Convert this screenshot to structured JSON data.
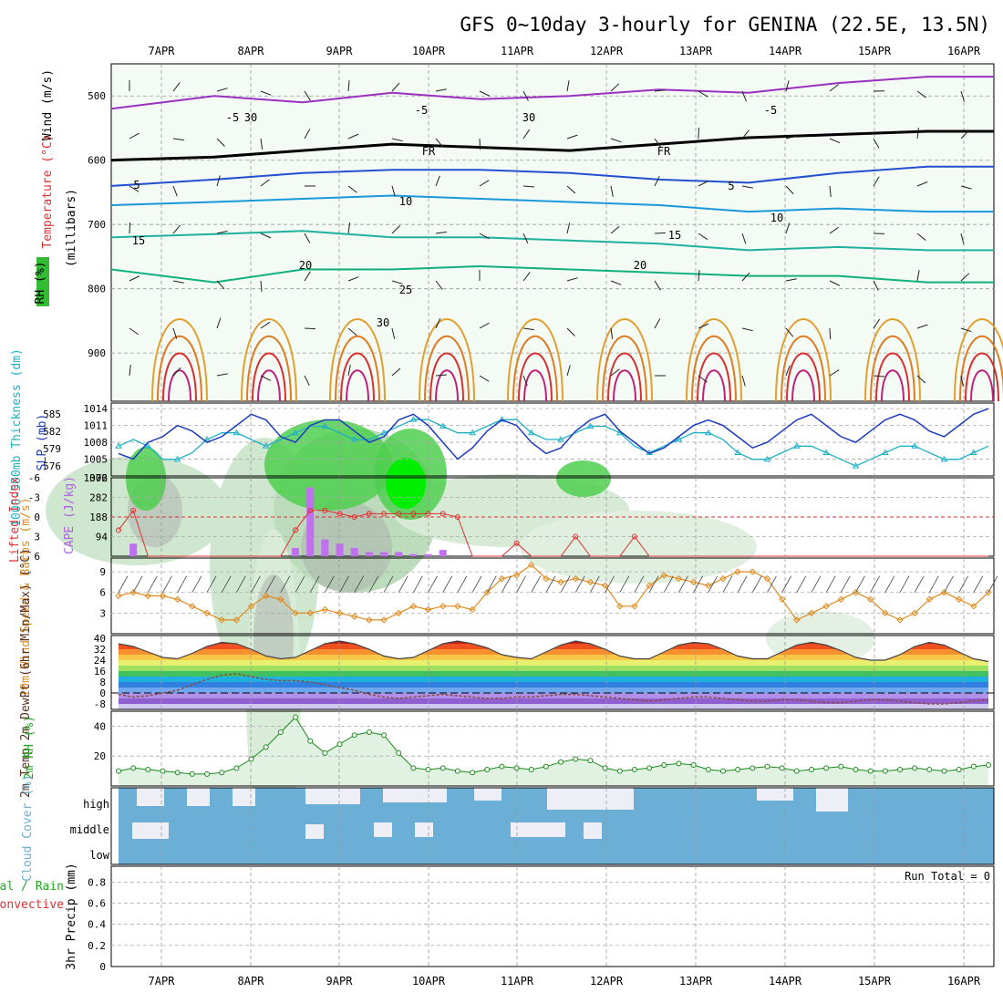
{
  "title": "GFS 0~10day 3-hourly for GENINA (22.5E, 13.5N)",
  "dates": [
    "7APR",
    "8APR",
    "9APR",
    "10APR",
    "11APR",
    "12APR",
    "13APR",
    "14APR",
    "15APR",
    "16APR"
  ],
  "colors": {
    "green": "#22aa22",
    "red": "#e03030",
    "orange": "#e08a1e",
    "teal": "#20a8b8",
    "blue": "#1c3cc0",
    "purple": "#9930b0",
    "cyan": "#1fb0c8",
    "cloud": "#6baed6"
  },
  "chart_data": [
    {
      "id": "profile",
      "type": "heatmap",
      "ylabel_wind": "Wind (m/s)",
      "ylabel_temp": "Temperature (°C)",
      "ylabel_rh": "RH (%)",
      "ylabel_pressure": "(millibars)",
      "y_ticks": [
        500,
        600,
        700,
        800,
        900
      ],
      "ylim": [
        450,
        975
      ],
      "isotherm_labels": [
        "-5",
        "FR",
        "FR",
        "-5",
        "-5",
        "5",
        "5",
        "10",
        "10",
        "15",
        "15",
        "20",
        "20",
        "25",
        "30",
        "30",
        "30"
      ],
      "isotherms": [
        {
          "label": "-5",
          "hpa": [
            520,
            500,
            510,
            495,
            505,
            500,
            490,
            495,
            480,
            470
          ]
        },
        {
          "label": "FR",
          "hpa": [
            600,
            595,
            585,
            575,
            580,
            585,
            575,
            565,
            560,
            555
          ]
        },
        {
          "label": "5",
          "hpa": [
            640,
            630,
            620,
            615,
            615,
            620,
            630,
            635,
            620,
            610
          ]
        },
        {
          "label": "10",
          "hpa": [
            670,
            665,
            660,
            655,
            660,
            665,
            670,
            680,
            675,
            680
          ]
        },
        {
          "label": "15",
          "hpa": [
            720,
            715,
            710,
            720,
            720,
            725,
            730,
            740,
            735,
            740
          ]
        },
        {
          "label": "20",
          "hpa": [
            770,
            790,
            770,
            770,
            765,
            770,
            775,
            780,
            780,
            790
          ]
        }
      ]
    },
    {
      "id": "slp",
      "type": "line",
      "ylabel_left": "1000-500mb Thickness (dm)",
      "ylabel_right": "SLP (mb)",
      "left_ticks": [
        585,
        582,
        579,
        576
      ],
      "right_ticks": [
        1014,
        1011,
        1008,
        1005
      ],
      "right_bottom_label": "1002",
      "left_bottom_label": "1002",
      "slp": [
        1006,
        1005,
        1008,
        1009,
        1011,
        1010,
        1008,
        1009,
        1011,
        1013,
        1012,
        1009,
        1008,
        1011,
        1012,
        1012,
        1010,
        1008,
        1009,
        1012,
        1013,
        1011,
        1008,
        1005,
        1007,
        1010,
        1012,
        1011,
        1008,
        1006,
        1007,
        1010,
        1012,
        1013,
        1010,
        1008,
        1006,
        1007,
        1009,
        1011,
        1012,
        1011,
        1009,
        1007,
        1008,
        1010,
        1012,
        1013,
        1011,
        1009,
        1008,
        1010,
        1012,
        1013,
        1012,
        1010,
        1009,
        1011,
        1013,
        1014
      ],
      "thickness": [
        580,
        581,
        580,
        578,
        578,
        579,
        581,
        582,
        582,
        581,
        580,
        581,
        582,
        583,
        583,
        582,
        581,
        581,
        582,
        583,
        584,
        584,
        583,
        582,
        582,
        583,
        584,
        584,
        582,
        581,
        581,
        582,
        583,
        583,
        582,
        580,
        579,
        580,
        581,
        582,
        582,
        581,
        579,
        578,
        578,
        579,
        580,
        580,
        579,
        578,
        577,
        578,
        579,
        580,
        580,
        579,
        578,
        578,
        579,
        580
      ]
    },
    {
      "id": "cape",
      "type": "bar",
      "ylabel_left": "Lifted Index",
      "ylabel_right": "CAPE (J/kg)",
      "left_ticks": [
        "-6",
        "-3",
        "0",
        "3",
        "6"
      ],
      "right_ticks": [
        "376",
        "282",
        "188",
        "94"
      ],
      "cape": [
        0,
        60,
        0,
        0,
        0,
        0,
        0,
        0,
        0,
        0,
        0,
        0,
        40,
        330,
        80,
        60,
        40,
        20,
        20,
        20,
        10,
        10,
        30,
        0,
        0,
        0,
        0,
        0,
        0,
        0,
        0,
        0,
        0,
        0,
        0,
        0,
        0,
        0,
        0,
        0,
        0,
        0,
        0,
        0,
        0,
        0,
        0,
        0,
        0,
        0,
        0,
        0,
        0,
        0,
        0,
        0,
        0,
        0,
        0,
        0
      ],
      "lifted_index": [
        2,
        -1,
        6,
        6,
        6,
        6,
        6,
        6,
        6,
        6,
        6,
        6,
        2,
        -1,
        -1,
        -0.5,
        0,
        -0.5,
        -0.5,
        -0.5,
        -0.5,
        -0.5,
        -0.5,
        0,
        6,
        6,
        6,
        4,
        6,
        6,
        6,
        3,
        6,
        6,
        6,
        3,
        6,
        6,
        6,
        6,
        6,
        6,
        6,
        6,
        6,
        6,
        6,
        6,
        6,
        6,
        6,
        6,
        6,
        6,
        6,
        6,
        6,
        6,
        6,
        6
      ]
    },
    {
      "id": "wind10m",
      "type": "line",
      "ylabel": "10m Wind Speed & Barbs (m/s)",
      "y_ticks": [
        "9",
        "6",
        "3"
      ],
      "values": [
        5.5,
        6,
        5.5,
        5.5,
        5,
        4,
        3,
        2,
        2,
        4,
        5.5,
        5,
        3,
        3,
        3.5,
        3,
        2.5,
        2,
        2,
        3,
        4,
        3.5,
        4,
        4,
        3.5,
        6,
        8,
        8.5,
        10,
        8,
        7.5,
        8,
        7.5,
        7,
        4,
        4,
        7,
        8.5,
        8,
        7.5,
        7,
        8,
        9,
        9,
        8,
        5,
        2,
        3,
        4,
        5,
        6,
        5,
        3,
        2,
        3,
        5,
        6,
        5,
        4,
        6
      ]
    },
    {
      "id": "temp2m",
      "type": "area",
      "ylabel": "2m Temp 2m DewPt (6hr Min/Max) (°C)",
      "y_ticks": [
        "40",
        "32",
        "24",
        "16",
        "8",
        "0",
        "-8"
      ],
      "temp": [
        36,
        34,
        30,
        26,
        25,
        29,
        34,
        37,
        36,
        32,
        27,
        25,
        26,
        31,
        36,
        38,
        36,
        32,
        27,
        25,
        26,
        31,
        36,
        38,
        36,
        33,
        28,
        26,
        25,
        30,
        35,
        38,
        36,
        32,
        27,
        25,
        25,
        30,
        35,
        37,
        36,
        32,
        27,
        25,
        25,
        30,
        35,
        37,
        35,
        31,
        26,
        24,
        24,
        28,
        34,
        37,
        35,
        30,
        25,
        23
      ],
      "dewpoint": [
        -1,
        -3,
        -2,
        0,
        2,
        6,
        10,
        13,
        14,
        12,
        10,
        9,
        9,
        8,
        6,
        4,
        2,
        -1,
        -3,
        -4,
        -3,
        -2,
        -1,
        -2,
        -3,
        -4,
        -4,
        -3,
        -3,
        -2,
        -1,
        -1,
        -2,
        -3,
        -4,
        -5,
        -6,
        -5,
        -4,
        -3,
        -3,
        -4,
        -5,
        -6,
        -6,
        -5,
        -5,
        -6,
        -7,
        -7,
        -6,
        -5,
        -5,
        -6,
        -7,
        -8,
        -8,
        -7,
        -6,
        -5
      ]
    },
    {
      "id": "rh2m",
      "type": "area",
      "ylabel": "2m RH (%)",
      "y_ticks": [
        "40",
        "20"
      ],
      "values": [
        10,
        12,
        11,
        10,
        9,
        8,
        8,
        9,
        12,
        18,
        26,
        36,
        46,
        30,
        22,
        28,
        34,
        36,
        34,
        22,
        12,
        11,
        12,
        10,
        9,
        11,
        13,
        12,
        11,
        13,
        16,
        18,
        17,
        12,
        10,
        11,
        12,
        14,
        15,
        14,
        11,
        10,
        11,
        12,
        13,
        12,
        10,
        11,
        12,
        13,
        11,
        10,
        10,
        11,
        12,
        11,
        10,
        11,
        13,
        14
      ]
    },
    {
      "id": "cloud",
      "type": "heatmap",
      "ylabel": "Cloud Cover (%)",
      "levels": [
        "high",
        "middle",
        "low"
      ]
    },
    {
      "id": "precip",
      "type": "bar",
      "ylabel_left": "Total / Rain",
      "ylabel_left2": "Convective",
      "ylabel": "3hr Precip (mm)",
      "y_ticks": [
        "0.8",
        "0.6",
        "0.4",
        "0.2",
        "0"
      ],
      "run_total": "Run Total = 0"
    }
  ]
}
